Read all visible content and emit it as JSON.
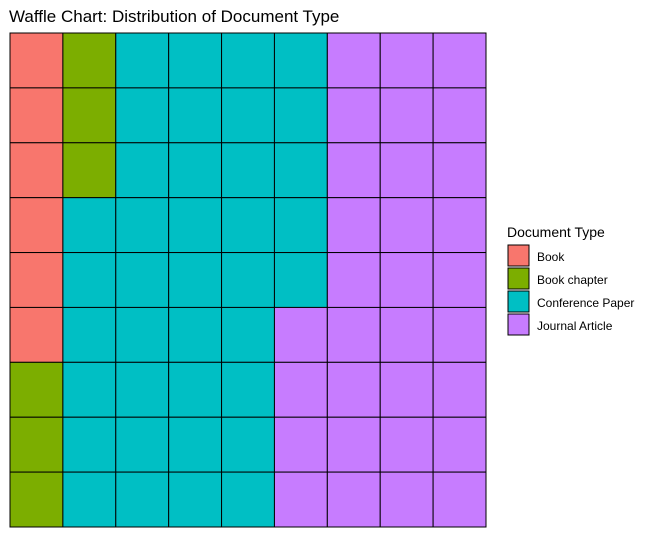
{
  "chart_data": {
    "type": "waffle",
    "title": "Waffle Chart: Distribution of Document Type",
    "grid": {
      "columns": 9,
      "rows": 9
    },
    "legend": {
      "title": "Document Type",
      "position": "right"
    },
    "categories": [
      "Book",
      "Book chapter",
      "Conference Paper",
      "Journal Article"
    ],
    "values": [
      6,
      6,
      38,
      31
    ],
    "colors": {
      "Book": "#F8766D",
      "Book chapter": "#7CAE00",
      "Conference Paper": "#00BFC4",
      "Journal Article": "#C77CFF"
    },
    "cells": [
      [
        "Book",
        "Book chapter",
        "Conference Paper",
        "Conference Paper",
        "Conference Paper",
        "Conference Paper",
        "Journal Article",
        "Journal Article",
        "Journal Article"
      ],
      [
        "Book",
        "Book chapter",
        "Conference Paper",
        "Conference Paper",
        "Conference Paper",
        "Conference Paper",
        "Journal Article",
        "Journal Article",
        "Journal Article"
      ],
      [
        "Book",
        "Book chapter",
        "Conference Paper",
        "Conference Paper",
        "Conference Paper",
        "Conference Paper",
        "Journal Article",
        "Journal Article",
        "Journal Article"
      ],
      [
        "Book",
        "Conference Paper",
        "Conference Paper",
        "Conference Paper",
        "Conference Paper",
        "Conference Paper",
        "Journal Article",
        "Journal Article",
        "Journal Article"
      ],
      [
        "Book",
        "Conference Paper",
        "Conference Paper",
        "Conference Paper",
        "Conference Paper",
        "Conference Paper",
        "Journal Article",
        "Journal Article",
        "Journal Article"
      ],
      [
        "Book",
        "Conference Paper",
        "Conference Paper",
        "Conference Paper",
        "Conference Paper",
        "Journal Article",
        "Journal Article",
        "Journal Article",
        "Journal Article"
      ],
      [
        "Book chapter",
        "Conference Paper",
        "Conference Paper",
        "Conference Paper",
        "Conference Paper",
        "Journal Article",
        "Journal Article",
        "Journal Article",
        "Journal Article"
      ],
      [
        "Book chapter",
        "Conference Paper",
        "Conference Paper",
        "Conference Paper",
        "Conference Paper",
        "Journal Article",
        "Journal Article",
        "Journal Article",
        "Journal Article"
      ],
      [
        "Book chapter",
        "Conference Paper",
        "Conference Paper",
        "Conference Paper",
        "Conference Paper",
        "Journal Article",
        "Journal Article",
        "Journal Article",
        "Journal Article"
      ]
    ],
    "cell_border_color": "#000000"
  }
}
